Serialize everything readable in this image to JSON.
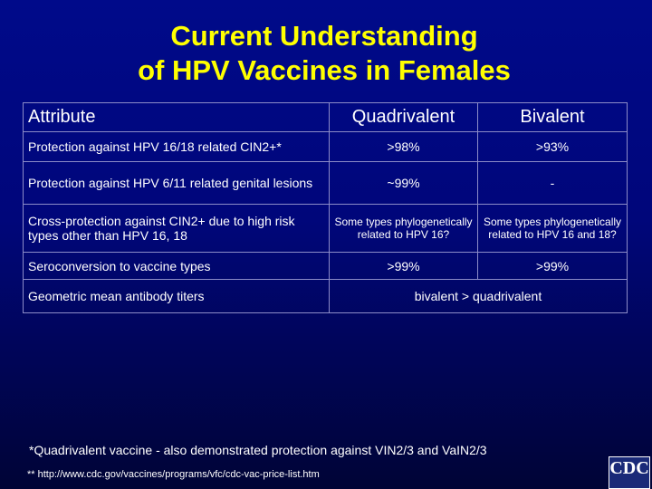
{
  "title": [
    "Current Understanding",
    "of HPV Vaccines in Females"
  ],
  "table": {
    "header": [
      "Attribute",
      "Quadrivalent",
      "Bivalent"
    ],
    "rows": [
      [
        "Protection against HPV 16/18 related CIN2+*",
        ">98%",
        ">93%"
      ],
      [
        "Protection against HPV 6/11 related genital lesions",
        "~99%",
        "-"
      ],
      [
        "Cross-protection against CIN2+ due to high risk types other than HPV 16, 18",
        "Some types phylogenetically related to HPV 16?",
        "Some types phylogenetically related to HPV 16 and 18?"
      ],
      [
        "Seroconversion to vaccine types",
        ">99%",
        ">99%"
      ],
      [
        "Geometric mean antibody titers",
        "bivalent > quadrivalent"
      ]
    ]
  },
  "footnotes": [
    "*Quadrivalent vaccine - also demonstrated protection against VIN2/3 and VaIN2/3",
    "** http://www.cdc.gov/vaccines/programs/vfc/cdc-vac-price-list.htm"
  ],
  "logo": "CDC"
}
